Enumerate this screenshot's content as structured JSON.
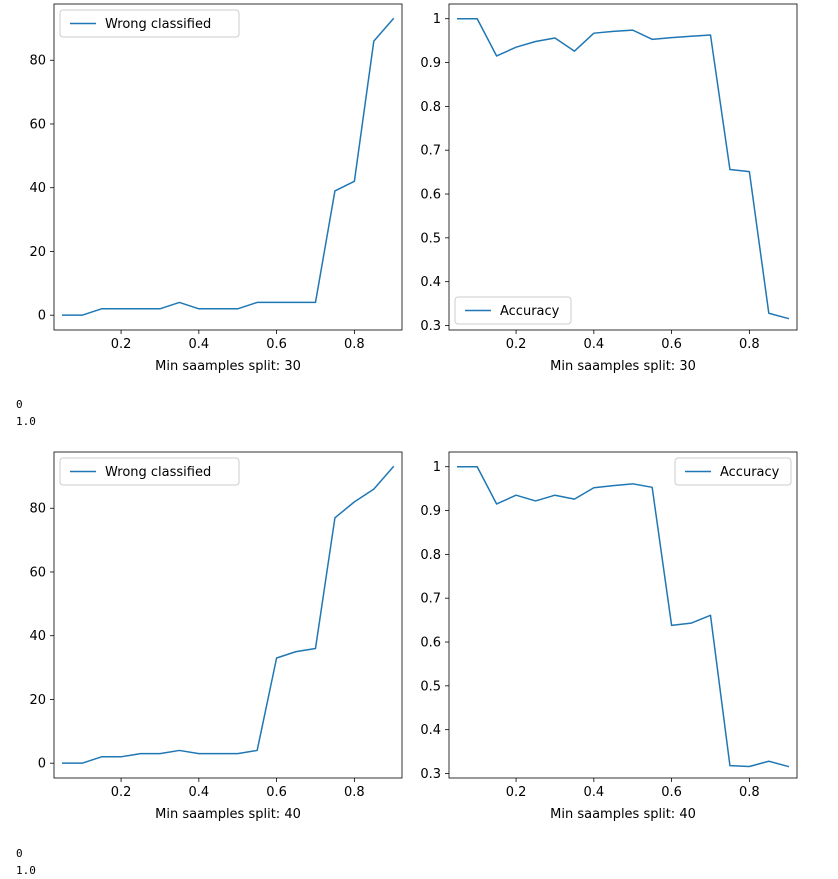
{
  "outputs": [
    {
      "lines": [
        "0",
        "1.0"
      ]
    },
    {
      "lines": [
        "0",
        "1.0"
      ]
    }
  ],
  "chart_data": [
    {
      "type": "line",
      "xlabel": "Min saamples split: 30",
      "xlim": [
        0.0275,
        0.9225
      ],
      "ylim": [
        -4.65,
        97.65
      ],
      "xticks": [
        0.2,
        0.4,
        0.6,
        0.8
      ],
      "yticks": [
        0,
        20,
        40,
        60,
        80
      ],
      "legend": "top-left",
      "grid": false,
      "series": [
        {
          "name": "Wrong classified",
          "color": "#1f77b4",
          "x": [
            0.05,
            0.1,
            0.15,
            0.2,
            0.25,
            0.3,
            0.35,
            0.4,
            0.45,
            0.5,
            0.55,
            0.6,
            0.65,
            0.7,
            0.75,
            0.8,
            0.85,
            0.9
          ],
          "y": [
            0,
            0,
            2,
            2,
            2,
            2,
            4,
            2,
            2,
            2,
            4,
            4,
            4,
            4,
            39,
            42,
            86,
            93
          ]
        }
      ]
    },
    {
      "type": "line",
      "xlabel": "Min saamples split: 30",
      "xlim": [
        0.0275,
        0.9225
      ],
      "ylim": [
        0.2897,
        1.0336
      ],
      "xticks": [
        0.2,
        0.4,
        0.6,
        0.8
      ],
      "yticks": [
        0.3,
        0.4,
        0.5,
        0.6,
        0.7,
        0.8,
        0.9,
        1.0
      ],
      "legend": "bottom-left",
      "grid": false,
      "series": [
        {
          "name": "Accuracy",
          "color": "#1f77b4",
          "x": [
            0.05,
            0.1,
            0.15,
            0.2,
            0.25,
            0.3,
            0.35,
            0.4,
            0.45,
            0.5,
            0.55,
            0.6,
            0.65,
            0.7,
            0.75,
            0.8,
            0.85,
            0.9
          ],
          "y": [
            1.0,
            1.0,
            0.915,
            0.935,
            0.948,
            0.956,
            0.926,
            0.967,
            0.971,
            0.974,
            0.953,
            0.957,
            0.96,
            0.963,
            0.656,
            0.651,
            0.328,
            0.316
          ]
        }
      ]
    },
    {
      "type": "line",
      "xlabel": "Min saamples split: 40",
      "xlim": [
        0.0275,
        0.9225
      ],
      "ylim": [
        -4.65,
        97.65
      ],
      "xticks": [
        0.2,
        0.4,
        0.6,
        0.8
      ],
      "yticks": [
        0,
        20,
        40,
        60,
        80
      ],
      "legend": "top-left",
      "grid": false,
      "series": [
        {
          "name": "Wrong classified",
          "color": "#1f77b4",
          "x": [
            0.05,
            0.1,
            0.15,
            0.2,
            0.25,
            0.3,
            0.35,
            0.4,
            0.45,
            0.5,
            0.55,
            0.6,
            0.65,
            0.7,
            0.75,
            0.8,
            0.85,
            0.9
          ],
          "y": [
            0,
            0,
            2,
            2,
            3,
            3,
            4,
            3,
            3,
            3,
            4,
            33,
            35,
            36,
            77,
            82,
            86,
            93
          ]
        }
      ]
    },
    {
      "type": "line",
      "xlabel": "Min saamples split: 40",
      "xlim": [
        0.0275,
        0.9225
      ],
      "ylim": [
        0.2897,
        1.0336
      ],
      "xticks": [
        0.2,
        0.4,
        0.6,
        0.8
      ],
      "yticks": [
        0.3,
        0.4,
        0.5,
        0.6,
        0.7,
        0.8,
        0.9,
        1.0
      ],
      "legend": "top-right",
      "grid": false,
      "series": [
        {
          "name": "Accuracy",
          "color": "#1f77b4",
          "x": [
            0.05,
            0.1,
            0.15,
            0.2,
            0.25,
            0.3,
            0.35,
            0.4,
            0.45,
            0.5,
            0.55,
            0.6,
            0.65,
            0.7,
            0.75,
            0.8,
            0.85,
            0.9
          ],
          "y": [
            1.0,
            1.0,
            0.915,
            0.935,
            0.922,
            0.935,
            0.926,
            0.952,
            0.957,
            0.961,
            0.953,
            0.638,
            0.643,
            0.661,
            0.318,
            0.316,
            0.328,
            0.316
          ]
        }
      ]
    }
  ]
}
